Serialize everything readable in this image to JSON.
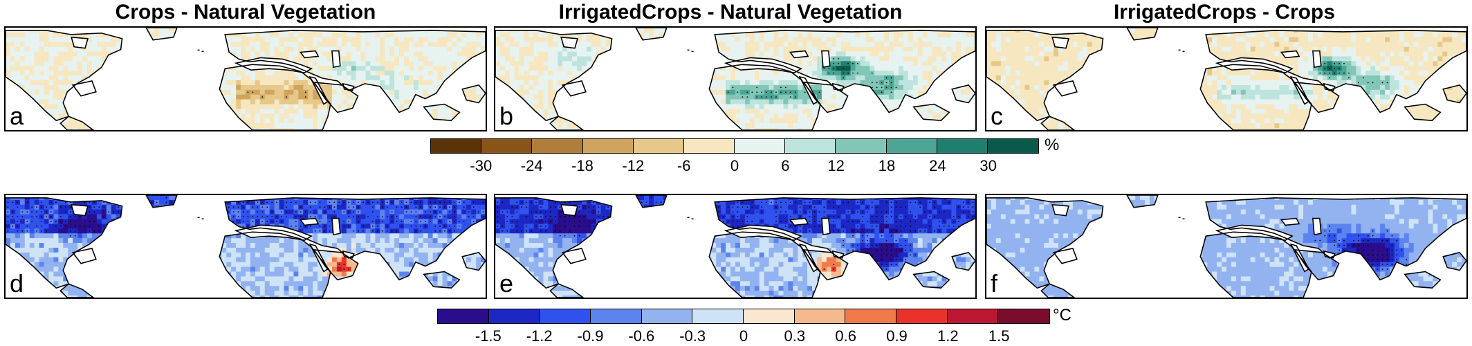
{
  "columns": [
    {
      "title": "Crops - Natural Vegetation"
    },
    {
      "title": "IrrigatedCrops - Natural Vegetation"
    },
    {
      "title": "IrrigatedCrops -  Crops"
    }
  ],
  "panels": [
    {
      "letter": "a",
      "variable": "percent",
      "palette": "brown-green"
    },
    {
      "letter": "b",
      "variable": "percent",
      "palette": "brown-green"
    },
    {
      "letter": "c",
      "variable": "percent",
      "palette": "brown-green"
    },
    {
      "letter": "d",
      "variable": "temperature",
      "palette": "blue-red"
    },
    {
      "letter": "e",
      "variable": "temperature",
      "palette": "blue-red"
    },
    {
      "letter": "f",
      "variable": "temperature",
      "palette": "blue-red"
    }
  ],
  "colorbars": {
    "percent": {
      "unit": "%",
      "ticks": [
        "-30",
        "-24",
        "-18",
        "-12",
        "-6",
        "0",
        "6",
        "12",
        "18",
        "24",
        "30"
      ],
      "colors": [
        "#5a3408",
        "#8a5418",
        "#b07d3a",
        "#cfa55e",
        "#e6c889",
        "#f6e7c0",
        "#e7f3f1",
        "#bde4dc",
        "#82c6b8",
        "#4ca595",
        "#1f7f6f",
        "#0a5a4c"
      ]
    },
    "temperature": {
      "unit": "°C",
      "ticks": [
        "-1.5",
        "-1.2",
        "-0.9",
        "-0.6",
        "-0.3",
        "0",
        "0.3",
        "0.6",
        "0.9",
        "1.2",
        "1.5"
      ],
      "colors": [
        "#2a0d8c",
        "#1c27c4",
        "#2f52ee",
        "#5d83ee",
        "#92b2f0",
        "#cfe3f7",
        "#fbe6cf",
        "#f6b98e",
        "#f07a4a",
        "#e8322a",
        "#bb1732",
        "#7a0c2c"
      ]
    }
  }
}
